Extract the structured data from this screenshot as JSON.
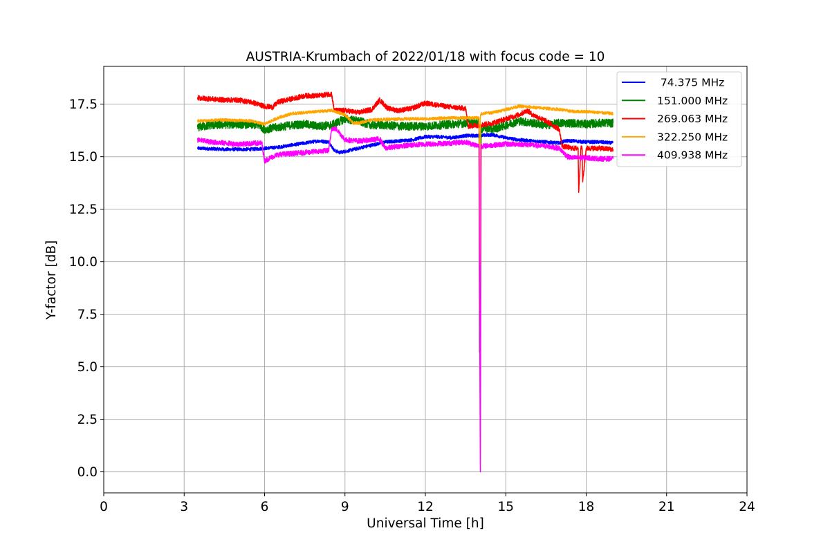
{
  "chart_data": {
    "type": "line",
    "title": "AUSTRIA-Krumbach of 2022/01/18 with focus code = 10",
    "xlabel": "Universal Time [h]",
    "ylabel": "Y-factor [dB]",
    "xlim": [
      0,
      24
    ],
    "ylim": [
      -1.0,
      19.3
    ],
    "xticks": [
      0,
      3,
      6,
      9,
      12,
      15,
      18,
      21,
      24
    ],
    "xtick_labels": [
      "0",
      "3",
      "6",
      "9",
      "12",
      "15",
      "18",
      "21",
      "24"
    ],
    "yticks": [
      0.0,
      2.5,
      5.0,
      7.5,
      10.0,
      12.5,
      15.0,
      17.5
    ],
    "ytick_labels": [
      "0.0",
      "2.5",
      "5.0",
      "7.5",
      "10.0",
      "12.5",
      "15.0",
      "17.5"
    ],
    "grid": true,
    "legend_position": "top-right",
    "series": [
      {
        "name": " 74.375 MHz",
        "color": "#0000ff",
        "noise": 0.08,
        "x": [
          3.5,
          4.5,
          5.5,
          6.0,
          6.5,
          7.0,
          7.5,
          8.0,
          8.4,
          8.6,
          8.8,
          9.0,
          9.5,
          10.0,
          10.5,
          11.0,
          11.5,
          12.0,
          12.5,
          13.0,
          13.5,
          14.0,
          14.5,
          15.0,
          15.5,
          16.0,
          16.5,
          17.0,
          17.2,
          17.5,
          18.0,
          18.5,
          19.0
        ],
        "y": [
          15.4,
          15.35,
          15.35,
          15.4,
          15.45,
          15.55,
          15.65,
          15.75,
          15.7,
          15.3,
          15.2,
          15.25,
          15.4,
          15.55,
          15.7,
          15.75,
          15.8,
          15.95,
          15.95,
          15.9,
          16.0,
          16.0,
          16.05,
          15.9,
          15.8,
          15.75,
          15.7,
          15.65,
          15.75,
          15.75,
          15.7,
          15.7,
          15.65
        ]
      },
      {
        "name": "151.000 MHz",
        "color": "#008000",
        "noise": 0.2,
        "x": [
          3.5,
          4.0,
          5.0,
          5.8,
          6.0,
          6.5,
          7.0,
          7.5,
          8.0,
          8.5,
          9.0,
          9.5,
          10.0,
          10.5,
          11.0,
          12.0,
          13.0,
          13.5,
          14.0,
          14.02,
          14.05,
          14.08,
          14.15,
          14.5,
          15.0,
          15.5,
          16.0,
          16.5,
          17.0,
          17.5,
          18.0,
          18.5,
          19.0
        ],
        "y": [
          16.4,
          16.5,
          16.55,
          16.5,
          16.3,
          16.4,
          16.5,
          16.55,
          16.45,
          16.5,
          16.8,
          16.7,
          16.5,
          16.5,
          16.45,
          16.45,
          16.55,
          16.6,
          16.6,
          5.7,
          7.7,
          16.2,
          16.4,
          16.3,
          16.5,
          16.7,
          16.6,
          16.5,
          16.6,
          16.6,
          16.55,
          16.6,
          16.6
        ]
      },
      {
        "name": "269.063 MHz",
        "color": "#ff0000",
        "noise": 0.12,
        "x": [
          3.5,
          4.0,
          4.5,
          5.0,
          5.5,
          6.0,
          6.3,
          6.5,
          7.0,
          7.5,
          8.0,
          8.5,
          8.6,
          9.0,
          9.5,
          10.0,
          10.3,
          10.6,
          11.0,
          11.5,
          12.0,
          12.5,
          13.0,
          13.5,
          13.6,
          14.0,
          14.5,
          15.0,
          15.5,
          15.8,
          16.0,
          16.5,
          17.0,
          17.1,
          17.5,
          17.7,
          17.72,
          17.8,
          17.85,
          17.87,
          18.0,
          18.5,
          19.0
        ],
        "y": [
          17.8,
          17.75,
          17.7,
          17.7,
          17.6,
          17.4,
          17.35,
          17.6,
          17.75,
          17.9,
          17.9,
          18.0,
          17.2,
          17.2,
          17.1,
          17.25,
          17.7,
          17.3,
          17.2,
          17.3,
          17.55,
          17.45,
          17.35,
          17.3,
          16.45,
          16.5,
          16.6,
          16.8,
          17.0,
          17.2,
          17.0,
          16.7,
          16.3,
          15.5,
          15.4,
          15.4,
          13.3,
          15.4,
          15.4,
          13.8,
          15.4,
          15.4,
          15.35
        ]
      },
      {
        "name": "322.250 MHz",
        "color": "#ffa500",
        "noise": 0.07,
        "x": [
          3.5,
          4.5,
          5.5,
          6.0,
          6.5,
          7.0,
          7.5,
          8.0,
          8.5,
          9.0,
          9.3,
          9.5,
          10.0,
          11.0,
          12.0,
          13.0,
          14.0,
          14.02,
          14.05,
          14.08,
          14.5,
          15.0,
          15.5,
          16.0,
          16.5,
          17.0,
          17.5,
          18.0,
          18.5,
          19.0
        ],
        "y": [
          16.7,
          16.75,
          16.7,
          16.55,
          16.85,
          17.05,
          17.1,
          17.15,
          17.2,
          17.0,
          16.6,
          16.6,
          16.75,
          16.8,
          16.8,
          16.85,
          16.85,
          7.7,
          16.9,
          17.05,
          17.1,
          17.25,
          17.4,
          17.35,
          17.3,
          17.25,
          17.15,
          17.15,
          17.1,
          17.05
        ]
      },
      {
        "name": "409.938 MHz",
        "color": "#ff00ff",
        "noise": 0.12,
        "x": [
          3.5,
          4.0,
          5.0,
          5.9,
          6.0,
          6.3,
          6.5,
          7.0,
          7.5,
          8.0,
          8.4,
          8.5,
          8.7,
          9.0,
          9.5,
          10.0,
          10.3,
          10.5,
          11.0,
          12.0,
          13.0,
          13.5,
          14.0,
          14.05,
          14.08,
          14.12,
          14.5,
          15.0,
          15.5,
          16.0,
          16.5,
          17.0,
          17.3,
          17.5,
          18.0,
          18.5,
          19.0
        ],
        "y": [
          15.8,
          15.7,
          15.6,
          15.65,
          14.8,
          15.0,
          15.1,
          15.15,
          15.2,
          15.25,
          15.3,
          16.35,
          16.3,
          15.8,
          15.75,
          15.8,
          15.85,
          15.4,
          15.5,
          15.6,
          15.65,
          15.7,
          15.5,
          0.0,
          15.6,
          15.5,
          15.55,
          15.6,
          15.6,
          15.55,
          15.5,
          15.4,
          15.0,
          14.95,
          14.95,
          14.9,
          14.9
        ]
      }
    ]
  }
}
